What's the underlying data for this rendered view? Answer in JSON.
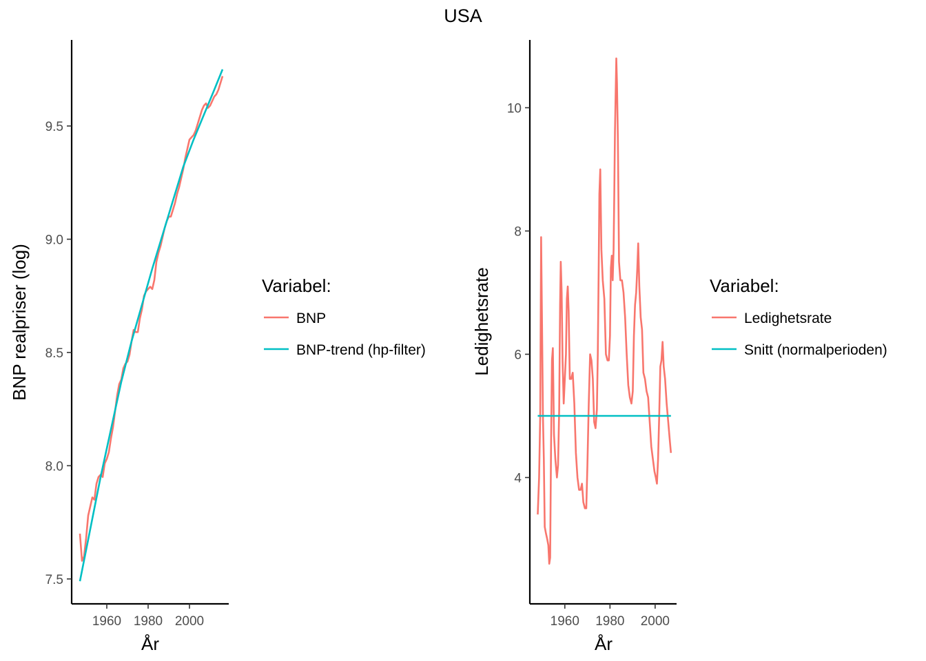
{
  "figure": {
    "title": "USA"
  },
  "chart_data": [
    {
      "type": "line",
      "xlabel": "År",
      "ylabel": "BNP realpriser (log)",
      "xlim": [
        1943,
        2019
      ],
      "ylim": [
        7.39,
        9.88
      ],
      "x_ticks": [
        1960,
        1980,
        2000
      ],
      "y_ticks": [
        7.5,
        8.0,
        8.5,
        9.0,
        9.5
      ],
      "legend": {
        "title": "Variabel:",
        "position": "right"
      },
      "series": [
        {
          "name": "BNP",
          "color": "#F8766D",
          "x": [
            1947,
            1948,
            1949,
            1950,
            1951,
            1952,
            1953,
            1954,
            1955,
            1956,
            1957,
            1958,
            1959,
            1960,
            1961,
            1962,
            1963,
            1964,
            1965,
            1966,
            1967,
            1968,
            1969,
            1970,
            1971,
            1972,
            1973,
            1974,
            1975,
            1976,
            1977,
            1978,
            1979,
            1980,
            1981,
            1982,
            1983,
            1984,
            1985,
            1986,
            1987,
            1988,
            1989,
            1990,
            1991,
            1992,
            1993,
            1994,
            1995,
            1996,
            1997,
            1998,
            1999,
            2000,
            2001,
            2002,
            2003,
            2004,
            2005,
            2006,
            2007,
            2008,
            2009,
            2010,
            2011,
            2012,
            2013,
            2014,
            2015,
            2016
          ],
          "values": [
            7.7,
            7.58,
            7.6,
            7.68,
            7.78,
            7.82,
            7.86,
            7.85,
            7.92,
            7.95,
            7.96,
            7.95,
            8.01,
            8.03,
            8.06,
            8.12,
            8.17,
            8.24,
            8.31,
            8.36,
            8.38,
            8.43,
            8.45,
            8.46,
            8.49,
            8.55,
            8.6,
            8.59,
            8.59,
            8.65,
            8.69,
            8.75,
            8.77,
            8.78,
            8.79,
            8.78,
            8.82,
            8.9,
            8.94,
            8.97,
            9.01,
            9.05,
            9.08,
            9.1,
            9.1,
            9.13,
            9.16,
            9.2,
            9.23,
            9.27,
            9.31,
            9.36,
            9.4,
            9.44,
            9.45,
            9.46,
            9.48,
            9.51,
            9.54,
            9.57,
            9.59,
            9.6,
            9.58,
            9.59,
            9.61,
            9.63,
            9.64,
            9.66,
            9.69,
            9.72
          ]
        },
        {
          "name": "BNP-trend (hp-filter)",
          "color": "#00BFC4",
          "x": [
            1947,
            1952,
            1957,
            1962,
            1967,
            1972,
            1977,
            1982,
            1987,
            1992,
            1997,
            2002,
            2007,
            2012,
            2016
          ],
          "values": [
            7.49,
            7.72,
            7.95,
            8.16,
            8.37,
            8.55,
            8.71,
            8.87,
            9.02,
            9.17,
            9.32,
            9.44,
            9.55,
            9.66,
            9.75
          ]
        }
      ]
    },
    {
      "type": "line",
      "xlabel": "År",
      "ylabel": "Ledighetsrate",
      "xlim": [
        1944.5,
        2009.5
      ],
      "ylim": [
        1.95,
        11.1
      ],
      "x_ticks": [
        1960,
        1980,
        2000
      ],
      "y_ticks": [
        4,
        6,
        8,
        10
      ],
      "legend": {
        "title": "Variabel:",
        "position": "right"
      },
      "series": [
        {
          "name": "Ledighetsrate",
          "color": "#F8766D",
          "x": [
            1948.0,
            1948.6,
            1949.1,
            1949.5,
            1949.9,
            1950.3,
            1950.7,
            1951.1,
            1951.6,
            1952.2,
            1952.7,
            1953.1,
            1953.5,
            1953.9,
            1954.3,
            1954.7,
            1955.2,
            1955.8,
            1956.5,
            1957.0,
            1957.5,
            1957.9,
            1958.2,
            1958.6,
            1959.0,
            1959.5,
            1960.0,
            1960.5,
            1960.9,
            1961.3,
            1961.7,
            1962.2,
            1962.8,
            1963.5,
            1964.2,
            1964.9,
            1965.6,
            1966.3,
            1967.0,
            1967.6,
            1968.2,
            1968.9,
            1969.5,
            1970.0,
            1970.6,
            1971.2,
            1971.8,
            1972.4,
            1973.0,
            1973.6,
            1974.2,
            1974.6,
            1975.0,
            1975.3,
            1975.7,
            1976.2,
            1976.8,
            1977.5,
            1978.2,
            1978.9,
            1979.5,
            1980.0,
            1980.4,
            1980.8,
            1981.2,
            1981.6,
            1981.9,
            1982.2,
            1982.5,
            1982.8,
            1983.1,
            1983.5,
            1984.0,
            1984.6,
            1985.3,
            1986.0,
            1986.7,
            1987.4,
            1988.1,
            1988.8,
            1989.5,
            1990.1,
            1990.6,
            1991.1,
            1991.6,
            1992.1,
            1992.5,
            1993.0,
            1993.6,
            1994.2,
            1994.8,
            1995.5,
            1996.2,
            1996.9,
            1997.6,
            1998.3,
            1999.0,
            1999.7,
            2000.3,
            2000.8,
            2001.3,
            2001.8,
            2002.3,
            2002.8,
            2003.3,
            2003.8,
            2004.4,
            2005.1,
            2005.8,
            2006.5,
            2007.0
          ],
          "values": [
            3.4,
            4.0,
            5.0,
            7.9,
            6.5,
            5.0,
            4.3,
            3.2,
            3.1,
            3.0,
            2.9,
            2.6,
            2.7,
            4.5,
            5.9,
            6.1,
            4.7,
            4.3,
            4.0,
            4.2,
            5.1,
            6.8,
            7.5,
            7.0,
            5.9,
            5.2,
            5.6,
            6.0,
            6.9,
            7.1,
            6.7,
            5.6,
            5.6,
            5.7,
            5.2,
            4.4,
            4.0,
            3.8,
            3.8,
            3.9,
            3.6,
            3.5,
            3.5,
            4.2,
            5.2,
            6.0,
            5.9,
            5.6,
            4.9,
            4.8,
            5.1,
            6.0,
            7.4,
            8.6,
            9.0,
            7.7,
            7.2,
            6.9,
            6.0,
            5.9,
            5.9,
            6.3,
            7.4,
            7.6,
            7.2,
            7.7,
            8.6,
            9.6,
            10.2,
            10.8,
            10.4,
            9.5,
            7.5,
            7.2,
            7.2,
            7.0,
            6.6,
            6.0,
            5.5,
            5.3,
            5.2,
            5.4,
            6.3,
            6.8,
            7.0,
            7.4,
            7.8,
            7.1,
            6.6,
            6.4,
            5.7,
            5.6,
            5.4,
            5.3,
            4.9,
            4.5,
            4.3,
            4.1,
            4.0,
            3.9,
            4.3,
            5.0,
            5.8,
            5.9,
            6.2,
            5.8,
            5.6,
            5.2,
            4.9,
            4.6,
            4.4
          ]
        },
        {
          "name": "Snitt (normalperioden)",
          "color": "#00BFC4",
          "x": [
            1948,
            2007
          ],
          "values": [
            5.0,
            5.0
          ]
        }
      ]
    }
  ]
}
